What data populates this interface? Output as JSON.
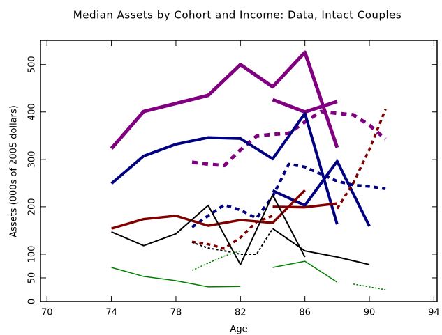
{
  "chart_data": {
    "type": "line",
    "title": "Median Assets by Cohort and Income:  Data, Intact Couples",
    "x_label": "Age",
    "y_label": "Assets (000s of 2005 dollars)",
    "xlim": [
      69.6,
      94.2
    ],
    "xticks": [
      70,
      74,
      78,
      82,
      86,
      90,
      94
    ],
    "ylim": [
      0,
      551
    ],
    "yticks": [
      0,
      50,
      100,
      200,
      300,
      400,
      500
    ],
    "series": [
      {
        "color": "#800080",
        "line_width": 5,
        "dashed": false,
        "x": [
          74,
          76,
          78,
          80,
          82,
          84,
          86,
          88
        ],
        "values": [
          323,
          401,
          418,
          435,
          500,
          453,
          526,
          325
        ]
      },
      {
        "color": "#800080",
        "line_width": 5,
        "dashed": false,
        "x": [
          84,
          86,
          88
        ],
        "values": [
          426,
          400,
          422
        ]
      },
      {
        "color": "#800080",
        "line_width": 5,
        "dashed": true,
        "x": [
          79,
          80,
          81,
          82,
          83,
          84,
          85,
          86,
          87,
          88,
          89,
          90,
          91
        ],
        "values": [
          294,
          290,
          287,
          320,
          349,
          353,
          355,
          379,
          401,
          397,
          394,
          372,
          343
        ]
      },
      {
        "color": "#000080",
        "line_width": 4,
        "dashed": false,
        "x": [
          74,
          76,
          78,
          80,
          82,
          84,
          86,
          88
        ],
        "values": [
          249,
          307,
          332,
          346,
          344,
          301,
          397,
          163
        ]
      },
      {
        "color": "#000080",
        "line_width": 4,
        "dashed": false,
        "x": [
          84,
          86,
          88,
          90
        ],
        "values": [
          234,
          203,
          296,
          159
        ]
      },
      {
        "color": "#000080",
        "line_width": 4,
        "dashed": true,
        "x": [
          79,
          80,
          81,
          82,
          83,
          84,
          85,
          86,
          87,
          88,
          89,
          90,
          91
        ],
        "values": [
          157,
          181,
          204,
          193,
          176,
          222,
          290,
          284,
          269,
          254,
          246,
          243,
          238
        ]
      },
      {
        "color": "#800000",
        "line_width": 3.5,
        "dashed": false,
        "x": [
          74,
          76,
          78,
          80,
          82,
          84,
          86
        ],
        "values": [
          154,
          174,
          181,
          160,
          172,
          166,
          235
        ]
      },
      {
        "color": "#800000",
        "line_width": 3.5,
        "dashed": false,
        "x": [
          84,
          86,
          88
        ],
        "values": [
          200,
          199,
          207
        ]
      },
      {
        "color": "#800000",
        "line_width": 3.5,
        "dashed": true,
        "x": [
          79,
          80,
          81,
          82,
          83,
          84
        ],
        "values": [
          126,
          121,
          112,
          135,
          168,
          181
        ]
      },
      {
        "color": "#800000",
        "line_width": 3.5,
        "dashed": true,
        "x": [
          88,
          89,
          90,
          91
        ],
        "values": [
          196,
          250,
          321,
          406
        ]
      },
      {
        "color": "#000000",
        "line_width": 2,
        "dashed": false,
        "x": [
          74,
          76,
          78,
          80,
          82,
          84,
          86
        ],
        "values": [
          147,
          118,
          143,
          203,
          78,
          225,
          94
        ]
      },
      {
        "color": "#000000",
        "line_width": 2,
        "dashed": false,
        "x": [
          84,
          86,
          88,
          90
        ],
        "values": [
          154,
          107,
          94,
          78
        ]
      },
      {
        "color": "#000000",
        "line_width": 2,
        "dashed": true,
        "x": [
          79,
          80,
          81,
          82,
          83,
          84
        ],
        "values": [
          125,
          113,
          107,
          100,
          100,
          154
        ]
      },
      {
        "color": "#008000",
        "line_width": 1.5,
        "dashed": false,
        "x": [
          74,
          76,
          78,
          80,
          82
        ],
        "values": [
          72,
          53,
          44,
          31,
          32
        ]
      },
      {
        "color": "#008000",
        "line_width": 1.5,
        "dashed": false,
        "x": [
          84,
          86,
          88
        ],
        "values": [
          72,
          85,
          41
        ]
      },
      {
        "color": "#008000",
        "line_width": 1.5,
        "dashed": true,
        "x": [
          79,
          80,
          81,
          82
        ],
        "values": [
          66,
          81,
          96,
          107
        ]
      },
      {
        "color": "#008000",
        "line_width": 1.5,
        "dashed": true,
        "x": [
          89,
          90,
          91
        ],
        "values": [
          37,
          31,
          25
        ]
      }
    ]
  }
}
